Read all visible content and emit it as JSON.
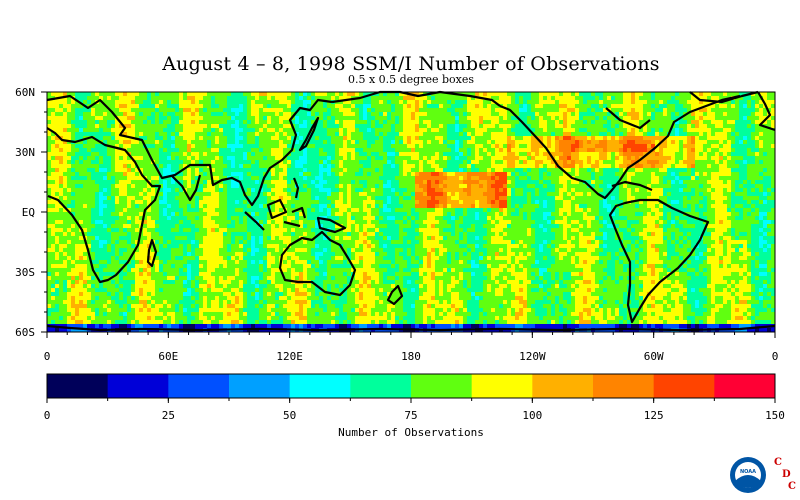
{
  "chart_data": {
    "type": "heatmap",
    "title": "August 4 – 8, 1998 SSM/I Number of Observations",
    "subtitle": "0.5 x 0.5 degree boxes",
    "x_ticks": [
      "0",
      "60E",
      "120E",
      "180",
      "120W",
      "60W",
      "0"
    ],
    "y_ticks": [
      "60N",
      "30N",
      "EQ",
      "30S",
      "60S"
    ],
    "xlim": [
      0,
      360
    ],
    "ylim": [
      -60,
      60
    ],
    "colorbar": {
      "label": "Number of Observations",
      "min": 0,
      "max": 150,
      "tick_labels": [
        "0",
        "25",
        "50",
        "75",
        "100",
        "125",
        "150"
      ],
      "colors": [
        "#00005a",
        "#0000d8",
        "#0050ff",
        "#00a0ff",
        "#00ffff",
        "#00ff9c",
        "#60ff10",
        "#ffff00",
        "#ffb000",
        "#ff8400",
        "#ff4400",
        "#ff0034"
      ]
    }
  },
  "logo": {
    "badge": "NOAA",
    "letters": [
      "C",
      "D",
      "C"
    ]
  }
}
